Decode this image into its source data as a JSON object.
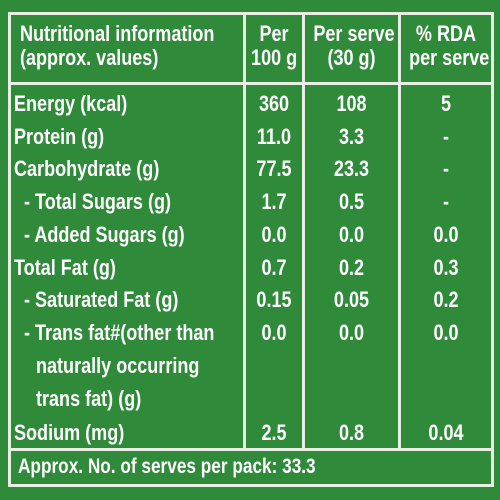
{
  "header": {
    "col1_line1": "Nutritional information",
    "col1_line2": "(approx. values)",
    "col2_line1": "Per",
    "col2_line2": "100 g",
    "col3_line1": "Per serve",
    "col3_line2": "(30 g)",
    "col4_line1": "% RDA",
    "col4_line2": "per serve"
  },
  "rows": [
    {
      "label": "Energy (kcal)",
      "per100": "360",
      "perServe": "108",
      "rda": "5"
    },
    {
      "label": "Protein (g)",
      "per100": "11.0",
      "perServe": "3.3",
      "rda": "-"
    },
    {
      "label": "Carbohydrate (g)",
      "per100": "77.5",
      "perServe": "23.3",
      "rda": "-"
    },
    {
      "label": "- Total Sugars (g)",
      "per100": "1.7",
      "perServe": "0.5",
      "rda": "-"
    },
    {
      "label": "- Added Sugars (g)",
      "per100": "0.0",
      "perServe": "0.0",
      "rda": "0.0"
    },
    {
      "label": "Total Fat (g)",
      "per100": "0.7",
      "perServe": "0.2",
      "rda": "0.3"
    },
    {
      "label": "- Saturated Fat (g)",
      "per100": "0.15",
      "perServe": "0.05",
      "rda": "0.2"
    },
    {
      "label": "- Trans fat#(other than",
      "label2": "naturally occurring",
      "label3": "trans fat) (g)",
      "per100": "0.0",
      "perServe": "0.0",
      "rda": "0.0"
    },
    {
      "label": "Sodium (mg)",
      "per100": "2.5",
      "perServe": "0.8",
      "rda": "0.04"
    }
  ],
  "footer": "Approx. No. of serves per pack: 33.3",
  "colors": {
    "background": "#2f8a3a",
    "lines": "#e9efe4",
    "text": "#ffffff"
  }
}
